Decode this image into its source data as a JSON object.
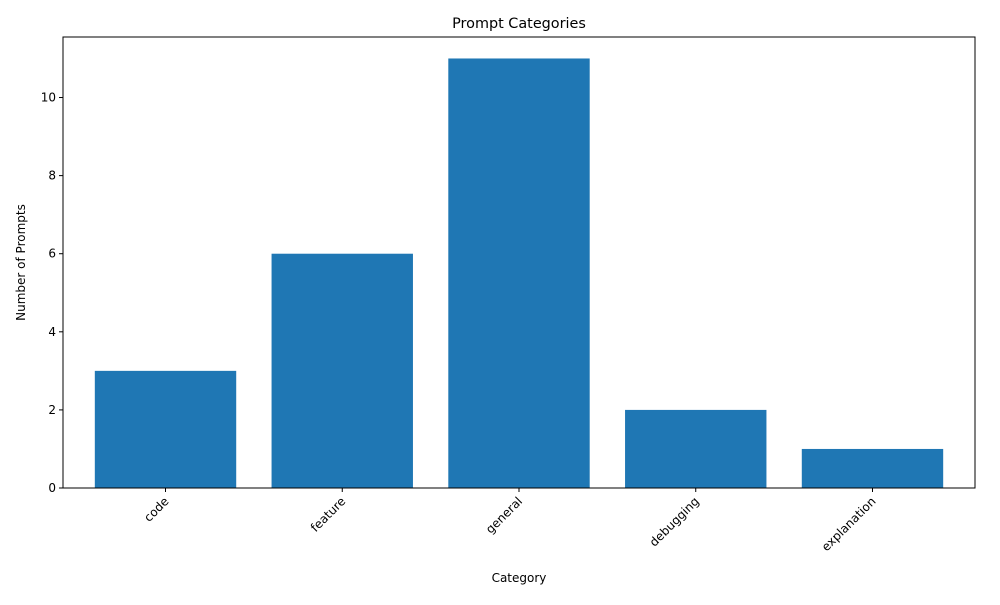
{
  "chart_data": {
    "type": "bar",
    "title": "Prompt Categories",
    "xlabel": "Category",
    "ylabel": "Number of Prompts",
    "categories": [
      "code",
      "feature",
      "general",
      "debugging",
      "explanation"
    ],
    "values": [
      3,
      6,
      11,
      2,
      1
    ],
    "ylim": [
      0,
      11.55
    ],
    "yticks": [
      0,
      2,
      4,
      6,
      8,
      10
    ],
    "bar_color": "#1f77b4",
    "grid": false,
    "legend": "none",
    "xtick_rotation_deg": 45
  }
}
